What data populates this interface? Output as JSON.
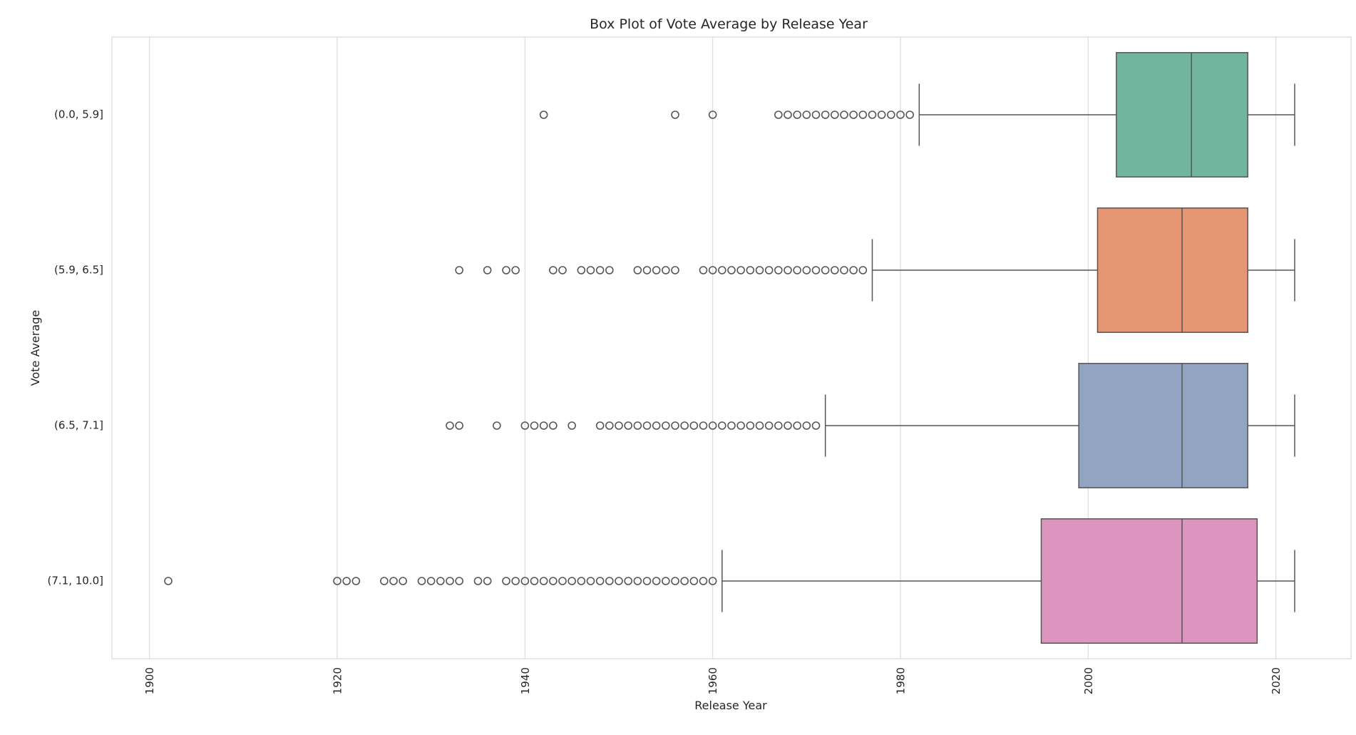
{
  "chart_data": {
    "type": "box",
    "orientation": "horizontal",
    "title": "Box Plot of Vote Average by Release Year",
    "xlabel": "Release Year",
    "ylabel": "Vote Average",
    "xlim": [
      1896,
      2028
    ],
    "xticks": [
      1900,
      1920,
      1940,
      1960,
      1980,
      2000,
      2020
    ],
    "grid": true,
    "categories": [
      "(0.0, 5.9]",
      "(5.9, 6.5]",
      "(6.5, 7.1]",
      "(7.1, 10.0]"
    ],
    "series": [
      {
        "category": "(0.0, 5.9]",
        "color": "#72b59f",
        "whisker_low": 1982,
        "q1": 2003,
        "median": 2011,
        "q3": 2017,
        "whisker_high": 2022,
        "outliers": [
          1942,
          1956,
          1960,
          1967,
          1968,
          1969,
          1970,
          1971,
          1972,
          1973,
          1974,
          1975,
          1976,
          1977,
          1978,
          1979,
          1980,
          1981
        ]
      },
      {
        "category": "(5.9, 6.5]",
        "color": "#e79673",
        "whisker_low": 1977,
        "q1": 2001,
        "median": 2010,
        "q3": 2017,
        "whisker_high": 2022,
        "outliers": [
          1933,
          1936,
          1938,
          1939,
          1943,
          1944,
          1946,
          1947,
          1948,
          1949,
          1952,
          1953,
          1954,
          1955,
          1956,
          1959,
          1960,
          1961,
          1962,
          1963,
          1964,
          1965,
          1966,
          1967,
          1968,
          1969,
          1970,
          1971,
          1972,
          1973,
          1974,
          1975,
          1976
        ]
      },
      {
        "category": "(6.5, 7.1]",
        "color": "#93a3c2",
        "whisker_low": 1972,
        "q1": 1999,
        "median": 2010,
        "q3": 2017,
        "whisker_high": 2022,
        "outliers": [
          1932,
          1933,
          1937,
          1940,
          1941,
          1942,
          1943,
          1945,
          1948,
          1949,
          1950,
          1951,
          1952,
          1953,
          1954,
          1955,
          1956,
          1957,
          1958,
          1959,
          1960,
          1961,
          1962,
          1963,
          1964,
          1965,
          1966,
          1967,
          1968,
          1969,
          1970,
          1971
        ]
      },
      {
        "category": "(7.1, 10.0]",
        "color": "#dc95bf",
        "whisker_low": 1961,
        "q1": 1995,
        "median": 2010,
        "q3": 2018,
        "whisker_high": 2022,
        "outliers": [
          1902,
          1920,
          1921,
          1922,
          1925,
          1926,
          1927,
          1929,
          1930,
          1931,
          1932,
          1933,
          1935,
          1936,
          1938,
          1939,
          1940,
          1941,
          1942,
          1943,
          1944,
          1945,
          1946,
          1947,
          1948,
          1949,
          1950,
          1951,
          1952,
          1953,
          1954,
          1955,
          1956,
          1957,
          1958,
          1959,
          1960
        ]
      }
    ]
  }
}
